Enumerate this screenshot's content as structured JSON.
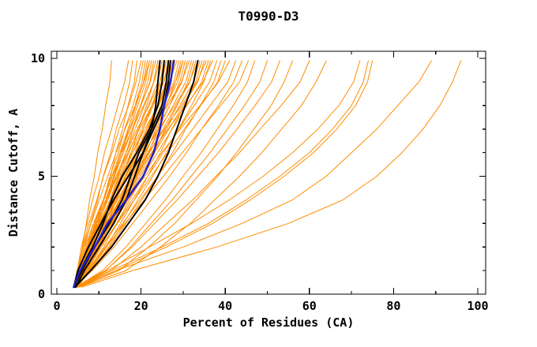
{
  "chart_data": {
    "type": "line",
    "title": "T0990-D3",
    "xlabel": "Percent of Residues (CA)",
    "ylabel": "Distance Cutoff, A",
    "xlim": [
      -1.3,
      102
    ],
    "ylim": [
      0,
      10.3
    ],
    "grid": false,
    "legend": "none",
    "x_major_ticks": [
      0,
      20,
      40,
      60,
      80,
      100
    ],
    "x_minor_ticks": [
      10,
      30,
      50,
      70,
      90
    ],
    "y_major_ticks": [
      0,
      5,
      10
    ],
    "y_minor_ticks": [
      1,
      2,
      3,
      4,
      6,
      7,
      8,
      9
    ],
    "colors": {
      "model": "#ff8c00",
      "highlight": "#000000",
      "selected": "#2020cc",
      "axis": "#000000",
      "background": "#ffffff"
    },
    "y_points": [
      0.3,
      1,
      2,
      3,
      4,
      5,
      6,
      7,
      8,
      9,
      9.9
    ],
    "series": {
      "orange_models": [
        [
          4.5,
          5.2,
          6.1,
          7.0,
          7.8,
          8.9,
          9.7,
          10.8,
          11.6,
          12.6,
          13
        ],
        [
          4.2,
          4.9,
          5.8,
          7.2,
          8.5,
          10.1,
          11.3,
          13.0,
          14.5,
          16.1,
          17
        ],
        [
          4.0,
          5.0,
          6.6,
          8.0,
          9.7,
          11.0,
          12.8,
          14.1,
          15.9,
          17.3,
          18
        ],
        [
          4.3,
          6.0,
          7.7,
          9.5,
          11.0,
          12.8,
          14.0,
          15.6,
          16.9,
          18.4,
          19
        ],
        [
          4.0,
          4.8,
          6.2,
          7.6,
          9.5,
          11.1,
          13.1,
          14.8,
          17.1,
          18.8,
          20
        ],
        [
          4.6,
          5.8,
          7.6,
          9.1,
          11.1,
          12.6,
          14.6,
          16.1,
          18.1,
          19.6,
          20.5
        ],
        [
          4.1,
          6.0,
          8.2,
          10.0,
          11.9,
          13.7,
          15.4,
          17.0,
          18.6,
          20.2,
          21
        ],
        [
          4.4,
          5.8,
          7.5,
          9.4,
          11.2,
          13.1,
          15.0,
          16.9,
          18.8,
          20.6,
          21.5
        ],
        [
          4.0,
          4.9,
          6.3,
          8.1,
          10.1,
          12.1,
          14.1,
          16.2,
          18.6,
          20.7,
          22
        ],
        [
          4.7,
          6.1,
          7.8,
          9.7,
          11.6,
          13.5,
          15.4,
          17.3,
          19.2,
          21.1,
          22
        ],
        [
          4.2,
          6.2,
          8.6,
          10.6,
          12.6,
          14.6,
          16.5,
          18.1,
          19.9,
          21.6,
          22.5
        ],
        [
          4.0,
          5.5,
          7.4,
          9.5,
          11.6,
          13.7,
          15.8,
          17.9,
          20.0,
          22.1,
          23
        ],
        [
          4.5,
          5.5,
          7.0,
          8.9,
          11.0,
          13.1,
          15.1,
          17.4,
          19.9,
          22.2,
          23.5
        ],
        [
          4.1,
          5.7,
          7.7,
          9.9,
          12.1,
          14.2,
          16.4,
          18.6,
          20.8,
          23.0,
          24
        ],
        [
          4.8,
          6.9,
          9.4,
          11.5,
          13.6,
          15.7,
          17.7,
          19.4,
          21.3,
          23.0,
          24
        ],
        [
          4.0,
          5.0,
          6.7,
          8.7,
          11.0,
          13.2,
          15.5,
          17.9,
          20.6,
          23.1,
          24.5
        ],
        [
          4.3,
          6.0,
          8.0,
          10.3,
          12.6,
          14.9,
          17.1,
          19.4,
          21.7,
          24.0,
          25
        ],
        [
          4.6,
          6.9,
          9.6,
          11.9,
          14.2,
          16.5,
          18.6,
          20.5,
          22.6,
          24.5,
          25.5
        ],
        [
          4.0,
          5.8,
          8.0,
          10.4,
          12.8,
          15.2,
          17.6,
          20.1,
          22.5,
          24.9,
          26
        ],
        [
          4.4,
          5.5,
          7.2,
          9.4,
          11.7,
          14.1,
          16.5,
          19.1,
          21.9,
          24.5,
          26
        ],
        [
          4.2,
          6.0,
          8.2,
          10.7,
          13.1,
          15.6,
          18.0,
          20.5,
          22.9,
          25.4,
          26.5
        ],
        [
          4.7,
          7.2,
          10.1,
          12.5,
          15.0,
          17.4,
          19.6,
          21.6,
          23.9,
          25.9,
          27
        ],
        [
          4.0,
          5.2,
          7.0,
          9.3,
          11.8,
          14.4,
          16.9,
          19.6,
          22.6,
          25.4,
          27
        ],
        [
          4.5,
          6.3,
          8.6,
          11.2,
          13.7,
          16.2,
          18.8,
          21.3,
          23.8,
          26.4,
          27.5
        ],
        [
          4.1,
          6.7,
          9.8,
          12.5,
          15.1,
          17.7,
          20.1,
          22.3,
          24.7,
          26.8,
          28
        ],
        [
          4.3,
          6.2,
          8.6,
          11.2,
          13.8,
          16.4,
          19.0,
          21.6,
          24.2,
          26.8,
          28
        ],
        [
          4.6,
          5.8,
          7.7,
          10.1,
          12.7,
          15.4,
          18.0,
          20.9,
          24.0,
          26.8,
          28.5
        ],
        [
          4.0,
          6.0,
          8.5,
          11.3,
          14.0,
          16.8,
          19.5,
          22.3,
          25.0,
          27.8,
          29
        ],
        [
          4.4,
          7.2,
          10.4,
          13.2,
          15.9,
          18.7,
          21.2,
          23.5,
          26.0,
          28.2,
          29.5
        ],
        [
          4.2,
          5.5,
          7.6,
          10.1,
          13.0,
          15.8,
          18.6,
          21.7,
          25.1,
          28.2,
          30
        ],
        [
          4.6,
          6.6,
          9.2,
          12.0,
          14.8,
          17.6,
          20.3,
          23.1,
          25.9,
          28.7,
          30
        ],
        [
          4.0,
          6.9,
          10.4,
          13.3,
          16.2,
          19.1,
          21.8,
          24.1,
          26.8,
          29.2,
          30.5
        ],
        [
          4.5,
          6.6,
          9.3,
          12.2,
          15.1,
          18.0,
          20.9,
          23.8,
          26.8,
          29.7,
          31
        ],
        [
          4.1,
          5.5,
          7.7,
          10.4,
          13.4,
          16.4,
          19.4,
          22.7,
          26.3,
          29.6,
          31.5
        ],
        [
          4.7,
          6.9,
          9.6,
          12.6,
          15.6,
          18.6,
          21.6,
          24.6,
          27.6,
          30.6,
          32
        ],
        [
          4.3,
          7.4,
          11.1,
          14.2,
          17.3,
          20.4,
          23.2,
          25.7,
          28.6,
          31.1,
          32.5
        ],
        [
          4.0,
          6.3,
          9.2,
          12.4,
          15.6,
          18.8,
          22.0,
          25.2,
          28.4,
          31.6,
          33
        ],
        [
          4.5,
          6.0,
          8.3,
          11.2,
          14.4,
          17.6,
          20.7,
          24.2,
          28.0,
          31.5,
          33.5
        ],
        [
          4.2,
          6.6,
          9.6,
          12.8,
          16.1,
          19.4,
          22.7,
          26.0,
          29.2,
          32.5,
          34
        ],
        [
          4.6,
          7.9,
          11.8,
          15.1,
          18.4,
          21.6,
          24.6,
          27.3,
          30.3,
          33.0,
          34.5
        ],
        [
          4.0,
          6.5,
          9.6,
          13.0,
          16.4,
          19.8,
          23.2,
          26.6,
          30.0,
          33.5,
          35
        ],
        [
          4.4,
          6.0,
          8.4,
          11.6,
          15.0,
          18.4,
          21.8,
          25.5,
          29.6,
          33.3,
          35.5
        ],
        [
          4.2,
          6.7,
          9.9,
          13.4,
          16.9,
          20.4,
          23.9,
          27.4,
          30.9,
          34.4,
          36
        ],
        [
          4.7,
          8.2,
          12.3,
          15.8,
          19.3,
          22.8,
          26.0,
          28.9,
          32.0,
          34.9,
          36.5
        ],
        [
          4.0,
          5.7,
          8.3,
          11.6,
          15.2,
          18.9,
          22.5,
          26.4,
          30.7,
          34.7,
          37
        ],
        [
          4.5,
          7.2,
          10.5,
          14.2,
          17.9,
          21.6,
          25.3,
          29.0,
          32.6,
          36.3,
          38
        ],
        [
          4.2,
          8.0,
          12.6,
          16.4,
          20.2,
          24.0,
          27.5,
          30.6,
          34.1,
          37.3,
          39
        ],
        [
          4.0,
          6.9,
          10.5,
          14.4,
          18.4,
          22.4,
          26.3,
          30.3,
          34.2,
          38.2,
          40
        ],
        [
          4.4,
          6.2,
          9.2,
          12.8,
          16.8,
          20.9,
          24.9,
          29.3,
          34.0,
          38.4,
          41
        ],
        [
          4.6,
          7.6,
          11.4,
          15.6,
          19.8,
          23.9,
          28.1,
          32.3,
          36.4,
          40.6,
          42.5
        ],
        [
          4.0,
          8.4,
          13.6,
          18.0,
          22.4,
          26.8,
          30.8,
          34.4,
          38.4,
          42.0,
          44
        ],
        [
          4.3,
          7.6,
          11.7,
          16.2,
          20.8,
          25.3,
          29.8,
          34.4,
          38.9,
          43.4,
          45.5
        ],
        [
          4.5,
          10.9,
          16.4,
          21.1,
          25.8,
          30.0,
          34.3,
          38.1,
          41.9,
          45.3,
          47
        ],
        [
          4.8,
          11.6,
          17.5,
          22.4,
          27.4,
          31.9,
          36.4,
          40.5,
          44.6,
          48.2,
          50
        ],
        [
          4.2,
          11.5,
          17.9,
          23.2,
          28.6,
          33.5,
          38.4,
          42.8,
          47.1,
          51.0,
          53
        ],
        [
          5.0,
          14.7,
          21.8,
          28.0,
          33.1,
          38.2,
          42.7,
          46.8,
          50.9,
          54.0,
          56
        ],
        [
          4.5,
          12.8,
          20.0,
          26.1,
          32.3,
          37.8,
          43.4,
          48.3,
          53.3,
          57.8,
          60
        ],
        [
          5.2,
          16.4,
          24.6,
          31.7,
          37.5,
          43.4,
          48.7,
          53.4,
          58.1,
          61.6,
          64
        ],
        [
          4.8,
          12.0,
          22.0,
          32.0,
          41.0,
          49.0,
          56.0,
          62.0,
          67.0,
          70.5,
          72
        ],
        [
          5.0,
          13.0,
          25.0,
          36.0,
          45.0,
          53.0,
          60.0,
          65.5,
          70.0,
          72.8,
          74
        ],
        [
          5.0,
          14.0,
          26.0,
          37.0,
          46.0,
          54.0,
          61.0,
          66.5,
          71.0,
          73.8,
          75
        ],
        [
          5.5,
          14.0,
          30.0,
          44.0,
          56.0,
          64.0,
          70.0,
          76.0,
          81.0,
          86.0,
          89
        ],
        [
          6.0,
          18.0,
          38.0,
          55.0,
          68.0,
          76.0,
          82.0,
          87.0,
          91.0,
          94.0,
          96
        ]
      ],
      "black_models": [
        [
          4.0,
          5.0,
          7.5,
          10.5,
          13.5,
          17.0,
          20.5,
          22.5,
          23.5,
          24.0,
          24.5
        ],
        [
          4.2,
          5.5,
          8.5,
          11.0,
          13.0,
          15.5,
          19.0,
          22.0,
          24.0,
          25.0,
          25.5
        ],
        [
          4.0,
          6.0,
          9.0,
          12.5,
          15.5,
          17.5,
          19.5,
          22.5,
          25.0,
          26.0,
          26.5
        ],
        [
          4.5,
          6.5,
          10.0,
          13.5,
          16.5,
          18.5,
          20.5,
          23.0,
          25.5,
          26.5,
          27.0
        ],
        [
          4.3,
          8.0,
          13.0,
          17.0,
          21.0,
          24.0,
          26.5,
          28.5,
          30.5,
          32.5,
          33.5
        ]
      ],
      "blue_model": [
        [
          4.0,
          5.5,
          9.0,
          12.0,
          16.5,
          20.5,
          23.0,
          24.5,
          25.5,
          27.0,
          27.8
        ]
      ]
    }
  }
}
